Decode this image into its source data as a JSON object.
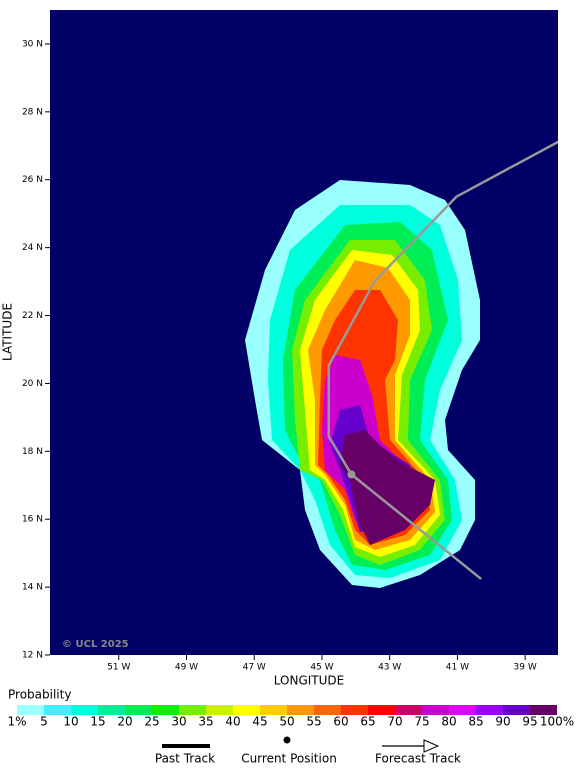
{
  "chart_data": {
    "type": "map",
    "xlabel": "LONGITUDE",
    "ylabel": "LATITUDE",
    "xlim": [
      -53.03,
      -38.03
    ],
    "ylim": [
      12,
      31
    ],
    "xticks": [
      {
        "value": -51,
        "label": "51 W"
      },
      {
        "value": -49,
        "label": "49 W"
      },
      {
        "value": -47,
        "label": "47 W"
      },
      {
        "value": -45,
        "label": "45 W"
      },
      {
        "value": -43,
        "label": "43 W"
      },
      {
        "value": -41,
        "label": "41 W"
      },
      {
        "value": -39,
        "label": "39 W"
      }
    ],
    "yticks": [
      {
        "value": 12,
        "label": "12 N"
      },
      {
        "value": 14,
        "label": "14 N"
      },
      {
        "value": 16,
        "label": "16 N"
      },
      {
        "value": 18,
        "label": "18 N"
      },
      {
        "value": 20,
        "label": "20 N"
      },
      {
        "value": 22,
        "label": "22 N"
      },
      {
        "value": 24,
        "label": "24 N"
      },
      {
        "value": 26,
        "label": "26 N"
      },
      {
        "value": 28,
        "label": "28 N"
      },
      {
        "value": 30,
        "label": "30 N"
      }
    ],
    "background": "#000066",
    "track": {
      "color": "#999999",
      "lon": [
        -37.5,
        -41.03,
        -43.45,
        -44.8,
        -44.8,
        -44.13,
        -40.3
      ],
      "lat": [
        27.4,
        25.5,
        23.0,
        20.53,
        18.44,
        17.32,
        14.24
      ]
    },
    "current_position": {
      "lon": -44.13,
      "lat": 17.32
    },
    "copyright": "© UCL 2025",
    "legend": {
      "title": "Probability",
      "levels": [
        {
          "value": 1,
          "label": "1%"
        },
        5,
        10,
        15,
        20,
        25,
        30,
        35,
        40,
        45,
        50,
        55,
        60,
        65,
        70,
        75,
        80,
        85,
        90,
        95,
        {
          "value": 100,
          "label": "100%"
        }
      ],
      "colors": [
        "#99ffff",
        "#44eeff",
        "#00ffdd",
        "#00ee99",
        "#00ee55",
        "#11ee00",
        "#77ee00",
        "#ccee00",
        "#ffff00",
        "#ffcc00",
        "#ff9900",
        "#ff6600",
        "#ff3300",
        "#ff0000",
        "#cc0066",
        "#cc00cc",
        "#dd00ff",
        "#9900ff",
        "#6600cc",
        "#660066"
      ]
    },
    "key": [
      "Past Track",
      "Current Position",
      "Forecast Track"
    ]
  }
}
